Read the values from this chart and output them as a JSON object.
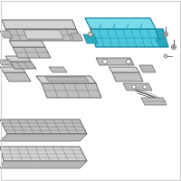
{
  "background_color": "#ffffff",
  "border_color": "#cccccc",
  "highlight_color": "#4ec8dc",
  "highlight_edge": "#1a8aaa",
  "highlight_top": "#7adcea",
  "highlight_side": "#2aaabf",
  "part_fill": "#d4d4d4",
  "part_fill2": "#c0c0c0",
  "part_fill3": "#b8b8b8",
  "part_edge": "#888888",
  "part_edge2": "#666666",
  "white": "#ffffff"
}
